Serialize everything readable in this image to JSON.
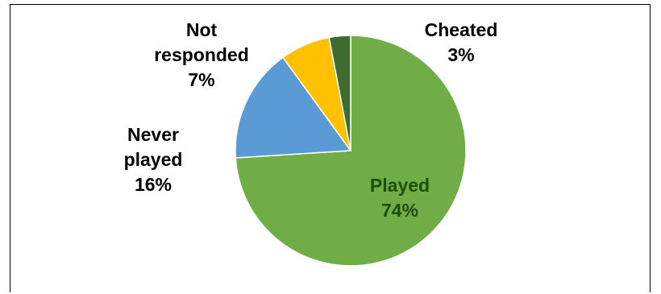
{
  "chart_data": {
    "type": "pie",
    "slices": [
      {
        "label": "Played",
        "value": 74,
        "display": "74%",
        "color": "#70ad47",
        "text_color": "#1f4e0c"
      },
      {
        "label": "Never played",
        "value": 16,
        "display": "16%",
        "color": "#5b9bd5",
        "text_color": "#000000"
      },
      {
        "label": "Not responded",
        "value": 7,
        "display": "7%",
        "color": "#ffc000",
        "text_color": "#000000"
      },
      {
        "label": "Cheated",
        "value": 3,
        "display": "3%",
        "color": "#3e6b30",
        "text_color": "#000000"
      }
    ],
    "label_lines": {
      "Played": [
        "Played"
      ],
      "Never played": [
        "Never",
        "played"
      ],
      "Not responded": [
        "Not",
        "responded"
      ],
      "Cheated": [
        "Cheated"
      ]
    },
    "legend": "none",
    "title": ""
  }
}
